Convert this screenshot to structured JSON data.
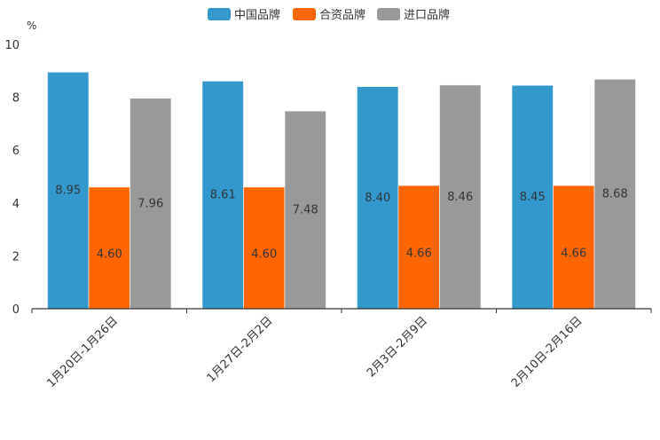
{
  "chart_data": {
    "type": "bar",
    "unit_label": "%",
    "categories": [
      "1月20日-1月26日",
      "1月27日-2月2日",
      "2月3日-2月9日",
      "2月10日-2月16日"
    ],
    "series": [
      {
        "name": "中国品牌",
        "color": "#3399cc",
        "values": [
          8.95,
          8.61,
          8.4,
          8.45
        ],
        "labels": [
          "8.95",
          "8.61",
          "8.40",
          "8.45"
        ]
      },
      {
        "name": "合资品牌",
        "color": "#ff6600",
        "values": [
          4.6,
          4.6,
          4.66,
          4.66
        ],
        "labels": [
          "4.60",
          "4.60",
          "4.66",
          "4.66"
        ]
      },
      {
        "name": "进口品牌",
        "color": "#999999",
        "values": [
          7.96,
          7.48,
          8.46,
          8.68
        ],
        "labels": [
          "7.96",
          "7.48",
          "8.46",
          "8.68"
        ]
      }
    ],
    "yticks": [
      "0",
      "2",
      "4",
      "6",
      "8",
      "10"
    ],
    "ylim": [
      0,
      10
    ],
    "legend_position": "top-center",
    "grid": false
  }
}
